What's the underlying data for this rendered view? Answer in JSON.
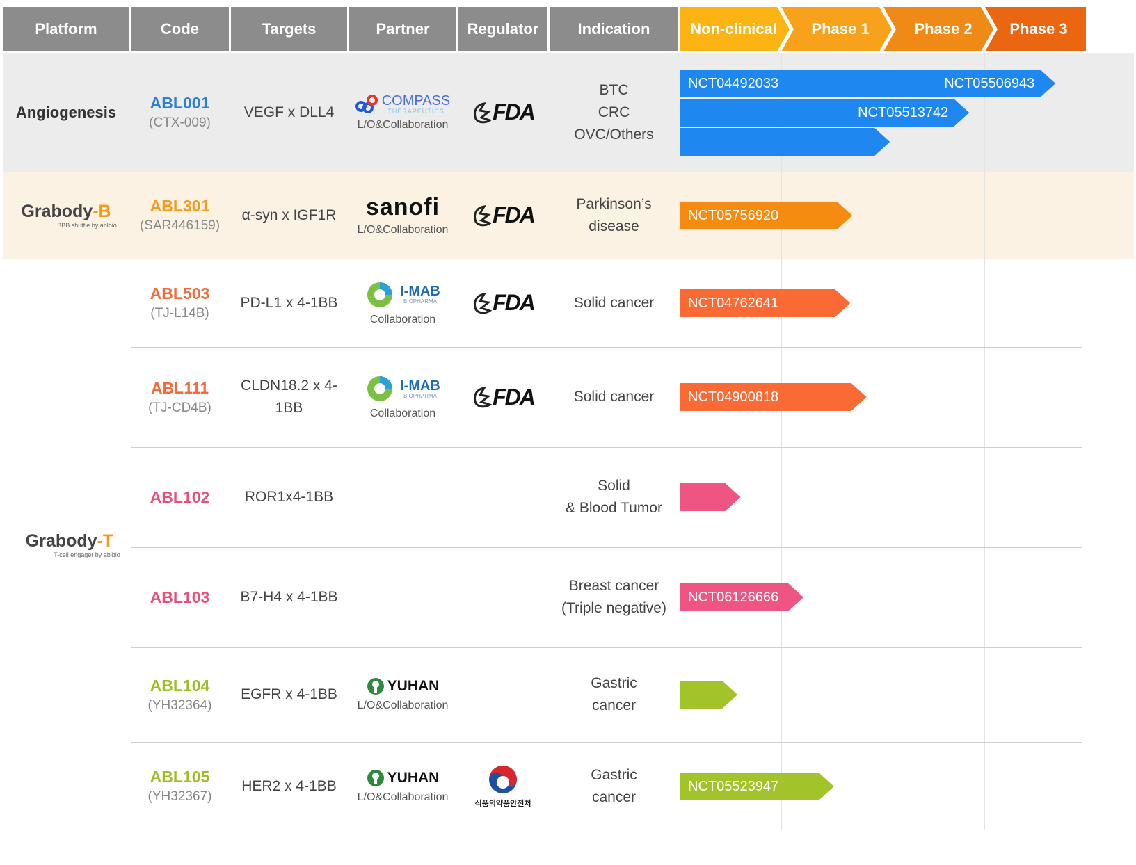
{
  "headers": {
    "platform": "Platform",
    "code": "Code",
    "targets": "Targets",
    "partner": "Partner",
    "regulator": "Regulator",
    "indication": "Indication"
  },
  "phases": [
    "Non-clinical",
    "Phase 1",
    "Phase 2",
    "Phase 3"
  ],
  "colors": {
    "header_gray": "#8c8c8c",
    "phase_colors": [
      "#fbb413",
      "#f7a21a",
      "#f08a16",
      "#ea6611"
    ],
    "blue": "#1e88f0",
    "orange": "#f68b12",
    "red_orange": "#fa6a34",
    "pink": "#ef5583",
    "lime": "#a2c32a"
  },
  "platforms": {
    "angiogenesis": "Angiogenesis",
    "grabody_b": {
      "name": "Grabody",
      "suffix": "-B",
      "tagline": "BBB shuttle by ablbio"
    },
    "grabody_t": {
      "name": "Grabody",
      "suffix": "-T",
      "tagline": "T-cell engager by ablbio"
    }
  },
  "regulator_logos": {
    "fda": "FDA",
    "mfds": "식품의약품안전처"
  },
  "rows": [
    {
      "code": "ABL001",
      "code_sub": "(CTX-009)",
      "code_color": "#2b7fd6",
      "targets": "VEGF x DLL4",
      "partner": "COMPASS",
      "partner_sub_logo": "THERAPEUTICS",
      "partner_note": "L/O&Collaboration",
      "regulator": "fda",
      "indications": [
        "BTC",
        "CRC",
        "OVC/Others"
      ],
      "bars": [
        {
          "label": "NCT04492033",
          "label2": "NCT05506943",
          "end": 3.7,
          "color": "#1e88f0"
        },
        {
          "label": "",
          "label2": "NCT05513742",
          "end": 2.85,
          "color": "#1e88f0"
        },
        {
          "label": "",
          "label2": "",
          "end": 2.07,
          "color": "#1e88f0"
        }
      ]
    },
    {
      "code": "ABL301",
      "code_sub": "(SAR446159)",
      "code_color": "#f39a1a",
      "targets": "α-syn x IGF1R",
      "partner": "sanofi",
      "partner_note": "L/O&Collaboration",
      "regulator": "fda",
      "indications": [
        "Parkinson’s",
        "disease"
      ],
      "bars": [
        {
          "label": "NCT05756920",
          "end": 1.7,
          "color": "#f68b12"
        }
      ]
    },
    {
      "code": "ABL503",
      "code_sub": "(TJ-L14B)",
      "code_color": "#f26b3a",
      "targets": "PD-L1 x 4-1BB",
      "partner": "I-MAB",
      "partner_sub_logo": "BIOPHARMA",
      "partner_note": "Collaboration",
      "regulator": "fda",
      "indications": [
        "Solid cancer"
      ],
      "bars": [
        {
          "label": "NCT04762641",
          "end": 1.68,
          "color": "#fa6a34"
        }
      ]
    },
    {
      "code": "ABL111",
      "code_sub": "(TJ-CD4B)",
      "code_color": "#f26b3a",
      "targets": "CLDN18.2 x 4-1BB",
      "partner": "I-MAB",
      "partner_sub_logo": "BIOPHARMA",
      "partner_note": "Collaboration",
      "regulator": "fda",
      "indications": [
        "Solid cancer"
      ],
      "bars": [
        {
          "label": "NCT04900818",
          "end": 1.84,
          "color": "#fa6a34"
        }
      ]
    },
    {
      "code": "ABL102",
      "code_sub": "",
      "code_color": "#ea4f7a",
      "targets": "ROR1x4-1BB",
      "partner": "",
      "partner_note": "",
      "regulator": "",
      "indications": [
        "Solid",
        "& Blood Tumor"
      ],
      "bars": [
        {
          "label": "",
          "end": 0.6,
          "color": "#ef5583"
        }
      ]
    },
    {
      "code": "ABL103",
      "code_sub": "",
      "code_color": "#ea4f7a",
      "targets": "B7-H4 x 4-1BB",
      "partner": "",
      "partner_note": "",
      "regulator": "",
      "indications": [
        "Breast cancer",
        "(Triple negative)"
      ],
      "bars": [
        {
          "label": "NCT06126666",
          "end": 1.22,
          "color": "#ef5583"
        }
      ]
    },
    {
      "code": "ABL104",
      "code_sub": "(YH32364)",
      "code_color": "#9cbd24",
      "targets": "EGFR x 4-1BB",
      "partner": "YUHAN",
      "partner_note": "L/O&Collaboration",
      "regulator": "",
      "indications": [
        "Gastric",
        "cancer"
      ],
      "bars": [
        {
          "label": "",
          "end": 0.57,
          "color": "#a2c32a"
        }
      ]
    },
    {
      "code": "ABL105",
      "code_sub": "(YH32367)",
      "code_color": "#9cbd24",
      "targets": "HER2 x 4-1BB",
      "partner": "YUHAN",
      "partner_note": "L/O&Collaboration",
      "regulator": "mfds",
      "indications": [
        "Gastric",
        "cancer"
      ],
      "bars": [
        {
          "label": "NCT05523947",
          "end": 1.52,
          "color": "#a2c32a"
        }
      ]
    }
  ],
  "chart_data": {
    "type": "bar",
    "orientation": "horizontal",
    "categories": [
      "ABL001",
      "ABL301",
      "ABL503",
      "ABL111",
      "ABL102",
      "ABL103",
      "ABL104",
      "ABL105"
    ],
    "x_axis_stages": [
      "Non-clinical",
      "Phase 1",
      "Phase 2",
      "Phase 3"
    ],
    "series": [
      {
        "values": [
          3.7,
          1.7,
          1.68,
          1.84,
          0.6,
          1.22,
          0.57,
          1.52
        ]
      }
    ],
    "grid": true,
    "xlim": [
      0,
      4
    ]
  }
}
